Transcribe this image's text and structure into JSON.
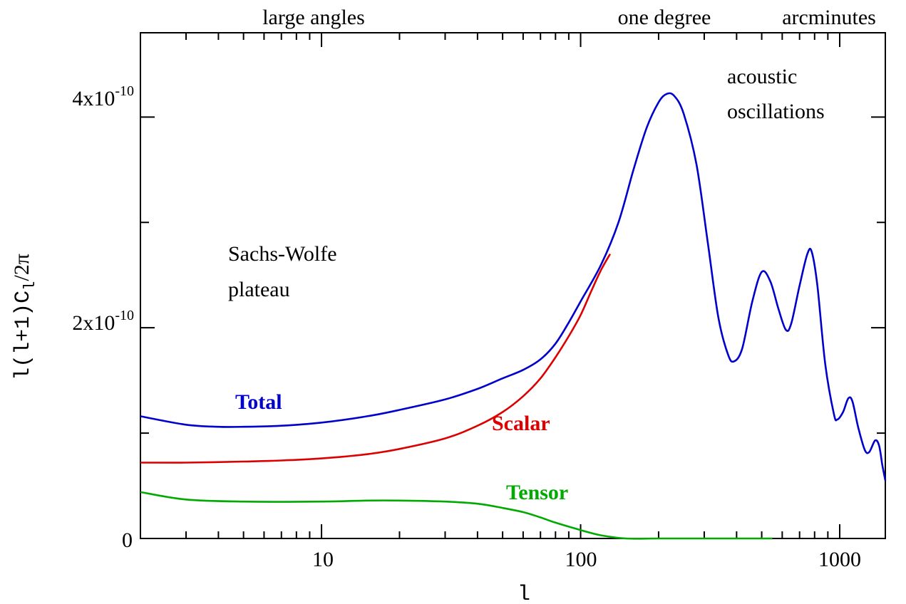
{
  "chart_data": {
    "type": "line",
    "title": "",
    "xlabel": "l",
    "ylabel": "l(l+1)C_l/2π",
    "x_scale": "log",
    "xlim": [
      2,
      1500
    ],
    "ylim": [
      0,
      4.8e-10
    ],
    "grid": false,
    "x_ticks": [
      {
        "value": 10,
        "label": "10"
      },
      {
        "value": 100,
        "label": "100"
      },
      {
        "value": 1000,
        "label": "1000"
      }
    ],
    "y_ticks": [
      {
        "value": 0,
        "label": "0"
      },
      {
        "value": 2e-10,
        "mantissa": "2x10",
        "exponent": "-10"
      },
      {
        "value": 4e-10,
        "mantissa": "4x10",
        "exponent": "-10"
      }
    ],
    "y_label_parts": {
      "pre": "l(l+1)C",
      "sub": "l",
      "post": "/2π"
    },
    "top_labels": [
      "large angles",
      "one degree",
      "arcminutes"
    ],
    "annotations": {
      "plateau": [
        "Sachs-Wolfe",
        "plateau"
      ],
      "acoustic": [
        "acoustic",
        "oscillations"
      ]
    },
    "series": [
      {
        "name": "Total",
        "color": "#0000cc",
        "points": [
          [
            2,
            1.16e-10
          ],
          [
            3,
            1.08e-10
          ],
          [
            4,
            1.06e-10
          ],
          [
            5,
            1.06e-10
          ],
          [
            7,
            1.07e-10
          ],
          [
            10,
            1.1e-10
          ],
          [
            15,
            1.16e-10
          ],
          [
            20,
            1.22e-10
          ],
          [
            30,
            1.32e-10
          ],
          [
            40,
            1.42e-10
          ],
          [
            50,
            1.52e-10
          ],
          [
            60,
            1.6e-10
          ],
          [
            70,
            1.7e-10
          ],
          [
            80,
            1.85e-10
          ],
          [
            90,
            2.05e-10
          ],
          [
            100,
            2.25e-10
          ],
          [
            120,
            2.6e-10
          ],
          [
            140,
            3e-10
          ],
          [
            160,
            3.5e-10
          ],
          [
            180,
            3.9e-10
          ],
          [
            200,
            4.14e-10
          ],
          [
            215,
            4.22e-10
          ],
          [
            230,
            4.2e-10
          ],
          [
            250,
            4.03e-10
          ],
          [
            280,
            3.55e-10
          ],
          [
            310,
            2.8e-10
          ],
          [
            340,
            2.1e-10
          ],
          [
            370,
            1.75e-10
          ],
          [
            390,
            1.68e-10
          ],
          [
            420,
            1.8e-10
          ],
          [
            460,
            2.25e-10
          ],
          [
            500,
            2.53e-10
          ],
          [
            540,
            2.44e-10
          ],
          [
            580,
            2.18e-10
          ],
          [
            620,
            1.98e-10
          ],
          [
            650,
            2.04e-10
          ],
          [
            700,
            2.4e-10
          ],
          [
            750,
            2.7e-10
          ],
          [
            780,
            2.72e-10
          ],
          [
            820,
            2.4e-10
          ],
          [
            880,
            1.65e-10
          ],
          [
            950,
            1.18e-10
          ],
          [
            980,
            1.13e-10
          ],
          [
            1030,
            1.2e-10
          ],
          [
            1080,
            1.33e-10
          ],
          [
            1120,
            1.3e-10
          ],
          [
            1180,
            1.05e-10
          ],
          [
            1250,
            8.4e-11
          ],
          [
            1300,
            8.2e-11
          ],
          [
            1370,
            9.3e-11
          ],
          [
            1420,
            8.8e-11
          ],
          [
            1460,
            7e-11
          ],
          [
            1500,
            5.5e-11
          ]
        ]
      },
      {
        "name": "Scalar",
        "color": "#dd0000",
        "points": [
          [
            2,
            7.2e-11
          ],
          [
            3,
            7.2e-11
          ],
          [
            5,
            7.3e-11
          ],
          [
            7,
            7.4e-11
          ],
          [
            10,
            7.6e-11
          ],
          [
            15,
            8e-11
          ],
          [
            20,
            8.5e-11
          ],
          [
            30,
            9.5e-11
          ],
          [
            40,
            1.07e-10
          ],
          [
            50,
            1.2e-10
          ],
          [
            60,
            1.35e-10
          ],
          [
            70,
            1.52e-10
          ],
          [
            80,
            1.72e-10
          ],
          [
            90,
            1.92e-10
          ],
          [
            100,
            2.12e-10
          ],
          [
            110,
            2.35e-10
          ],
          [
            120,
            2.55e-10
          ],
          [
            130,
            2.7e-10
          ]
        ]
      },
      {
        "name": "Tensor",
        "color": "#00aa00",
        "points": [
          [
            2,
            4.4e-11
          ],
          [
            3,
            3.7e-11
          ],
          [
            5,
            3.5e-11
          ],
          [
            10,
            3.5e-11
          ],
          [
            15,
            3.6e-11
          ],
          [
            20,
            3.6e-11
          ],
          [
            30,
            3.5e-11
          ],
          [
            40,
            3.3e-11
          ],
          [
            50,
            2.9e-11
          ],
          [
            60,
            2.5e-11
          ],
          [
            70,
            2e-11
          ],
          [
            80,
            1.5e-11
          ],
          [
            100,
            8e-12
          ],
          [
            120,
            3e-12
          ],
          [
            150,
            0.0
          ],
          [
            200,
            0.0
          ],
          [
            300,
            0.0
          ],
          [
            550,
            0.0
          ]
        ]
      }
    ]
  }
}
